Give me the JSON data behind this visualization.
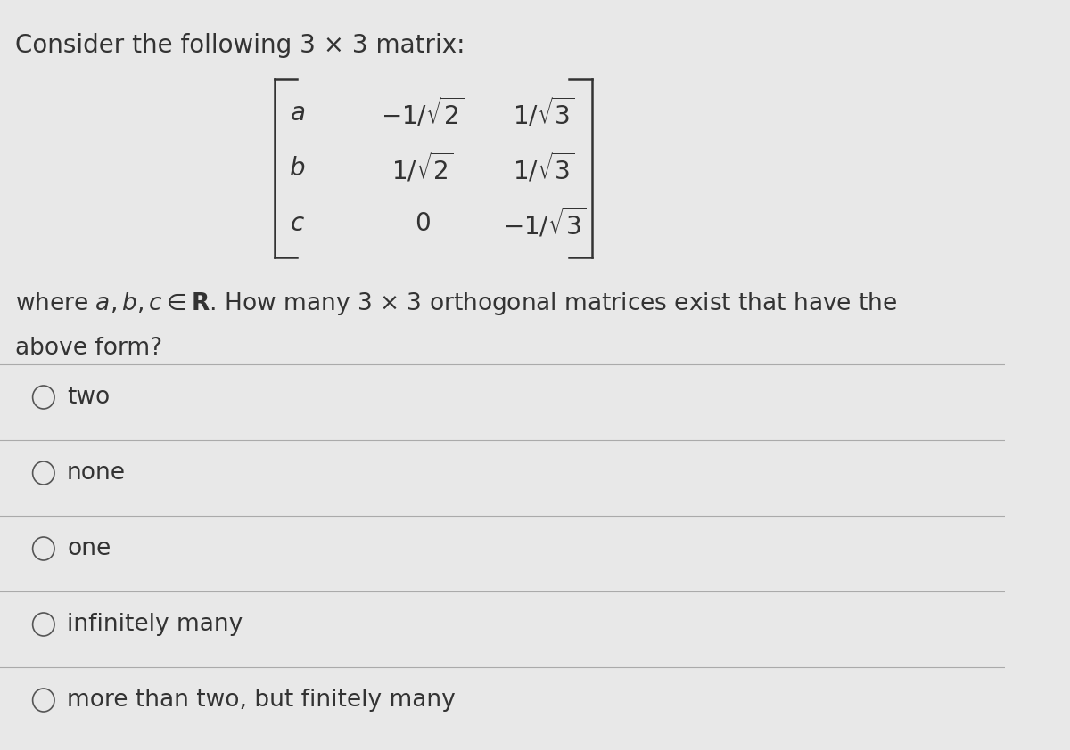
{
  "background_color": "#e8e8e8",
  "title_text": "Consider the following 3 × 3 matrix:",
  "title_fontsize": 20,
  "matrix_rows": [
    [
      "a",
      "-1/\\sqrt{2}",
      "1/\\sqrt{3}"
    ],
    [
      "b",
      "1/\\sqrt{2}",
      "1/\\sqrt{3}"
    ],
    [
      "c",
      "0",
      "-1/\\sqrt{3}"
    ]
  ],
  "where_text": "where $a, b, c \\in \\mathbf{R}$. How many 3 × 3 orthogonal matrices exist that have the above form?",
  "where_fontsize": 19,
  "options": [
    "two",
    "none",
    "one",
    "infinitely many",
    "more than two, but finitely many"
  ],
  "option_fontsize": 19,
  "text_color": "#333333",
  "line_color": "#aaaaaa",
  "circle_color": "#555555"
}
